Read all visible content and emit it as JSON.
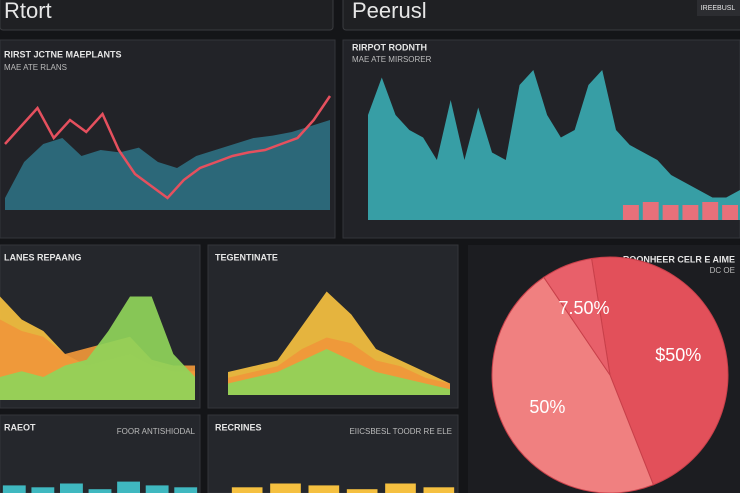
{
  "header": {
    "left": "Rtort",
    "center": "Peerusl",
    "button": "IREEBUSL"
  },
  "chart_data": [
    {
      "type": "combo",
      "title": "RIRST JCTNE MAEPLANTS",
      "subtitle": "MAE ATE RLANS",
      "ylim": [
        0,
        100
      ],
      "series": [
        {
          "kind": "area",
          "color": "#2e6f80",
          "values": [
            10,
            40,
            55,
            60,
            45,
            50,
            48,
            52,
            40,
            35,
            45,
            50,
            55,
            60,
            62,
            65,
            70,
            75
          ]
        },
        {
          "kind": "line",
          "color": "#e5505e",
          "values": [
            55,
            70,
            85,
            60,
            75,
            65,
            80,
            50,
            30,
            20,
            10,
            25,
            35,
            40,
            45,
            48,
            50,
            55,
            60,
            75,
            95
          ]
        }
      ]
    },
    {
      "type": "combo",
      "title": "RIRPOT RODNTH",
      "subtitle": "MAE ATE MIRSORER",
      "ylim": [
        0,
        100
      ],
      "series": [
        {
          "kind": "area",
          "color": "#3aa9b0",
          "values": [
            70,
            95,
            70,
            60,
            55,
            40,
            80,
            40,
            75,
            45,
            40,
            90,
            100,
            70,
            55,
            60,
            90,
            100,
            60,
            50,
            45,
            40,
            30,
            25,
            20,
            15,
            15,
            20
          ]
        },
        {
          "kind": "bar",
          "color": "#e8707a",
          "values": [
            10,
            12,
            10,
            10,
            12,
            10
          ]
        }
      ]
    },
    {
      "type": "combo",
      "title": "LANES REPAANG",
      "ylim": [
        0,
        100
      ],
      "series": [
        {
          "kind": "area",
          "color": "#f5c040",
          "values": [
            90,
            70,
            60,
            40,
            30,
            35,
            40,
            30,
            25,
            25
          ]
        },
        {
          "kind": "area",
          "color": "#f0973a",
          "values": [
            70,
            60,
            55,
            40,
            45,
            50,
            55,
            35,
            30,
            30
          ]
        },
        {
          "kind": "area",
          "color": "#8fd45a",
          "values": [
            20,
            25,
            20,
            30,
            35,
            60,
            90,
            90,
            40,
            20
          ]
        }
      ]
    },
    {
      "type": "combo",
      "title": "TEGENTINATE",
      "ylim": [
        0,
        100
      ],
      "series": [
        {
          "kind": "area",
          "color": "#f5c040",
          "values": [
            20,
            25,
            30,
            60,
            90,
            70,
            40,
            30,
            20,
            10
          ]
        },
        {
          "kind": "area",
          "color": "#f0973a",
          "values": [
            15,
            20,
            25,
            40,
            50,
            45,
            30,
            25,
            15,
            10
          ]
        },
        {
          "kind": "area",
          "color": "#8fd45a",
          "values": [
            10,
            15,
            20,
            30,
            40,
            30,
            20,
            15,
            10,
            5
          ]
        }
      ]
    },
    {
      "type": "pie",
      "title": "ROONHEER CELR E AIME",
      "subtitle": "DC OE",
      "values": [
        50,
        50,
        7.5
      ],
      "value_labels": [
        "$50%",
        "50%",
        "7.50%"
      ],
      "colors": [
        "#e2505a",
        "#f08080",
        "#e8606a"
      ]
    },
    {
      "type": "combo",
      "title": "RAEOT",
      "subtitle": "FOOR ANTISHIODAL",
      "ylim": [
        0,
        100
      ],
      "series": [
        {
          "kind": "bar",
          "color": "#3fb8c0",
          "values": [
            20,
            15,
            25,
            10,
            30,
            20,
            15
          ]
        }
      ]
    },
    {
      "type": "combo",
      "title": "RECRINES",
      "subtitle": "EIICSBESL TOODR RE ELE",
      "ylim": [
        0,
        100
      ],
      "series": [
        {
          "kind": "bar",
          "color": "#f5c040",
          "values": [
            15,
            25,
            20,
            10,
            25,
            15
          ]
        }
      ]
    }
  ]
}
